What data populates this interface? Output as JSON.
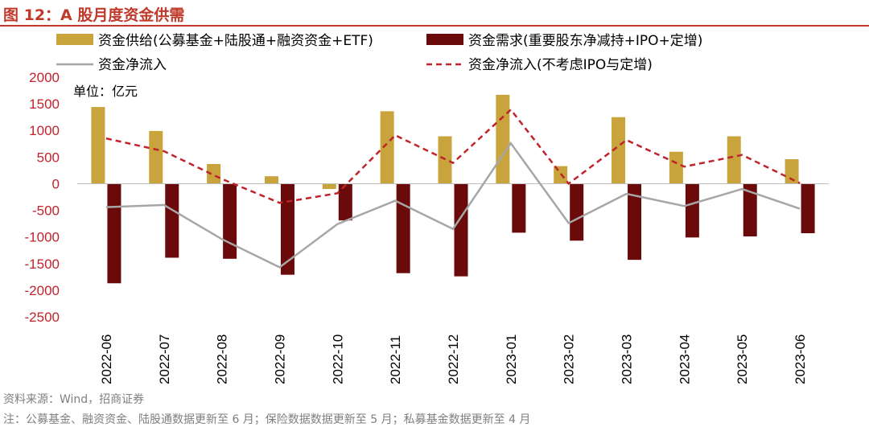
{
  "figure": {
    "title": "图 12：A 股月度资金供需",
    "source": "资料来源：Wind，招商证券",
    "note": "注：公募基金、融资资金、陆股通数据更新至 6 月；保险数据数据更新至 5 月；私募基金数据更新至 4 月"
  },
  "colors": {
    "supply": "#c9a43c",
    "demand": "#6b0a0a",
    "net": "#a6a6a6",
    "net_ex": "#c0232b",
    "axis_text": "#c0232b",
    "category_text": "#000000"
  },
  "chart_data": {
    "type": "bar",
    "unit_label": "单位：亿元",
    "categories": [
      "2022-06",
      "2022-07",
      "2022-08",
      "2022-09",
      "2022-10",
      "2022-11",
      "2022-12",
      "2023-01",
      "2023-02",
      "2023-03",
      "2023-04",
      "2023-05",
      "2023-06"
    ],
    "ylim": [
      -2500,
      2000
    ],
    "yticks": [
      2000,
      1500,
      1000,
      500,
      0,
      -500,
      -1000,
      -1500,
      -2000,
      -2500
    ],
    "grid": false,
    "legend_position": "top",
    "series": [
      {
        "name": "资金供给(公募基金+陆股通+融资资金+ETF)",
        "type": "bar",
        "values": [
          1440,
          990,
          370,
          140,
          -100,
          1360,
          890,
          1670,
          330,
          1250,
          600,
          890,
          460
        ]
      },
      {
        "name": "资金需求(重要股东净减持+IPO+定增)",
        "type": "bar",
        "values": [
          -1870,
          -1390,
          -1410,
          -1710,
          -690,
          -1680,
          -1740,
          -920,
          -1070,
          -1430,
          -1010,
          -990,
          -930
        ]
      },
      {
        "name": "资金净流入",
        "type": "line",
        "values": [
          -440,
          -400,
          -1040,
          -1570,
          -760,
          -320,
          -850,
          760,
          -740,
          -190,
          -420,
          -100,
          -470
        ]
      },
      {
        "name": "资金净流入(不考虑IPO与定增)",
        "type": "line",
        "dashed": true,
        "values": [
          850,
          610,
          90,
          -360,
          -180,
          910,
          390,
          1390,
          0,
          820,
          320,
          540,
          10
        ]
      }
    ]
  }
}
